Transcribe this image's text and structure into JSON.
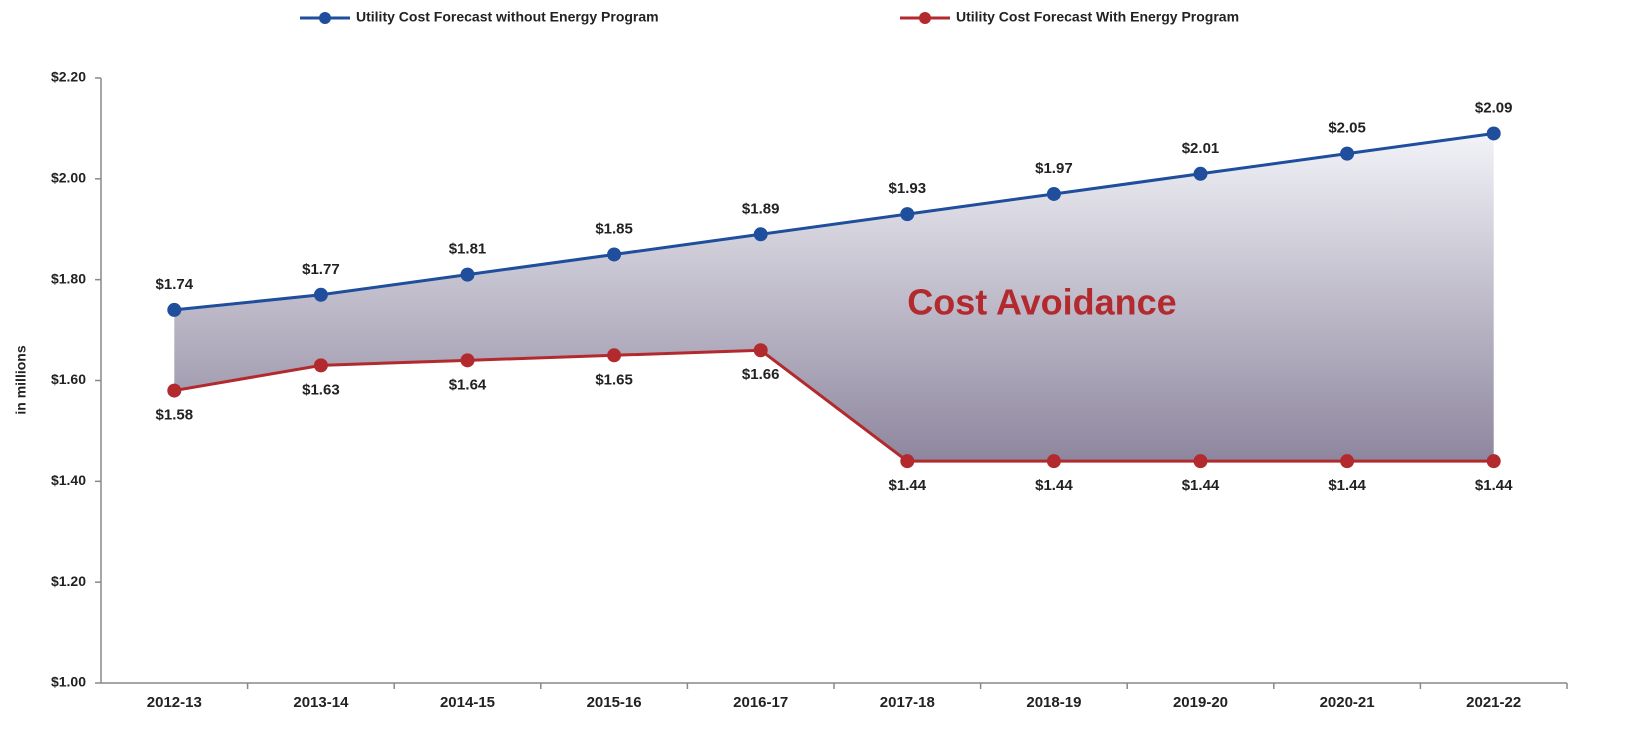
{
  "chart_data": {
    "type": "line",
    "y_axis_label": "in millions",
    "annotation": "Cost Avoidance",
    "categories": [
      "2012-13",
      "2013-14",
      "2014-15",
      "2015-16",
      "2016-17",
      "2017-18",
      "2018-19",
      "2019-20",
      "2020-21",
      "2021-22"
    ],
    "series": [
      {
        "name": "Utility Cost Forecast without Energy Program",
        "color": "#1f4e9c",
        "values": [
          1.74,
          1.77,
          1.81,
          1.85,
          1.89,
          1.93,
          1.97,
          2.01,
          2.05,
          2.09
        ],
        "value_labels": [
          "$1.74",
          "$1.77",
          "$1.81",
          "$1.85",
          "$1.89",
          "$1.93",
          "$1.97",
          "$2.01",
          "$2.05",
          "$2.09"
        ]
      },
      {
        "name": "Utility Cost Forecast With Energy Program",
        "color": "#b22a2e",
        "values": [
          1.58,
          1.63,
          1.64,
          1.65,
          1.66,
          1.44,
          1.44,
          1.44,
          1.44,
          1.44
        ],
        "value_labels": [
          "$1.58",
          "$1.63",
          "$1.64",
          "$1.65",
          "$1.66",
          "$1.44",
          "$1.44",
          "$1.44",
          "$1.44",
          "$1.44"
        ]
      }
    ],
    "ylim": [
      1.0,
      2.2
    ],
    "yticks": [
      {
        "value": 1.0,
        "label": "$1.00"
      },
      {
        "value": 1.2,
        "label": "$1.20"
      },
      {
        "value": 1.4,
        "label": "$1.40"
      },
      {
        "value": 1.6,
        "label": "$1.60"
      },
      {
        "value": 1.8,
        "label": "$1.80"
      },
      {
        "value": 2.0,
        "label": "$2.00"
      },
      {
        "value": 2.2,
        "label": "$2.20"
      }
    ],
    "legend": "top",
    "fill_between": true
  }
}
